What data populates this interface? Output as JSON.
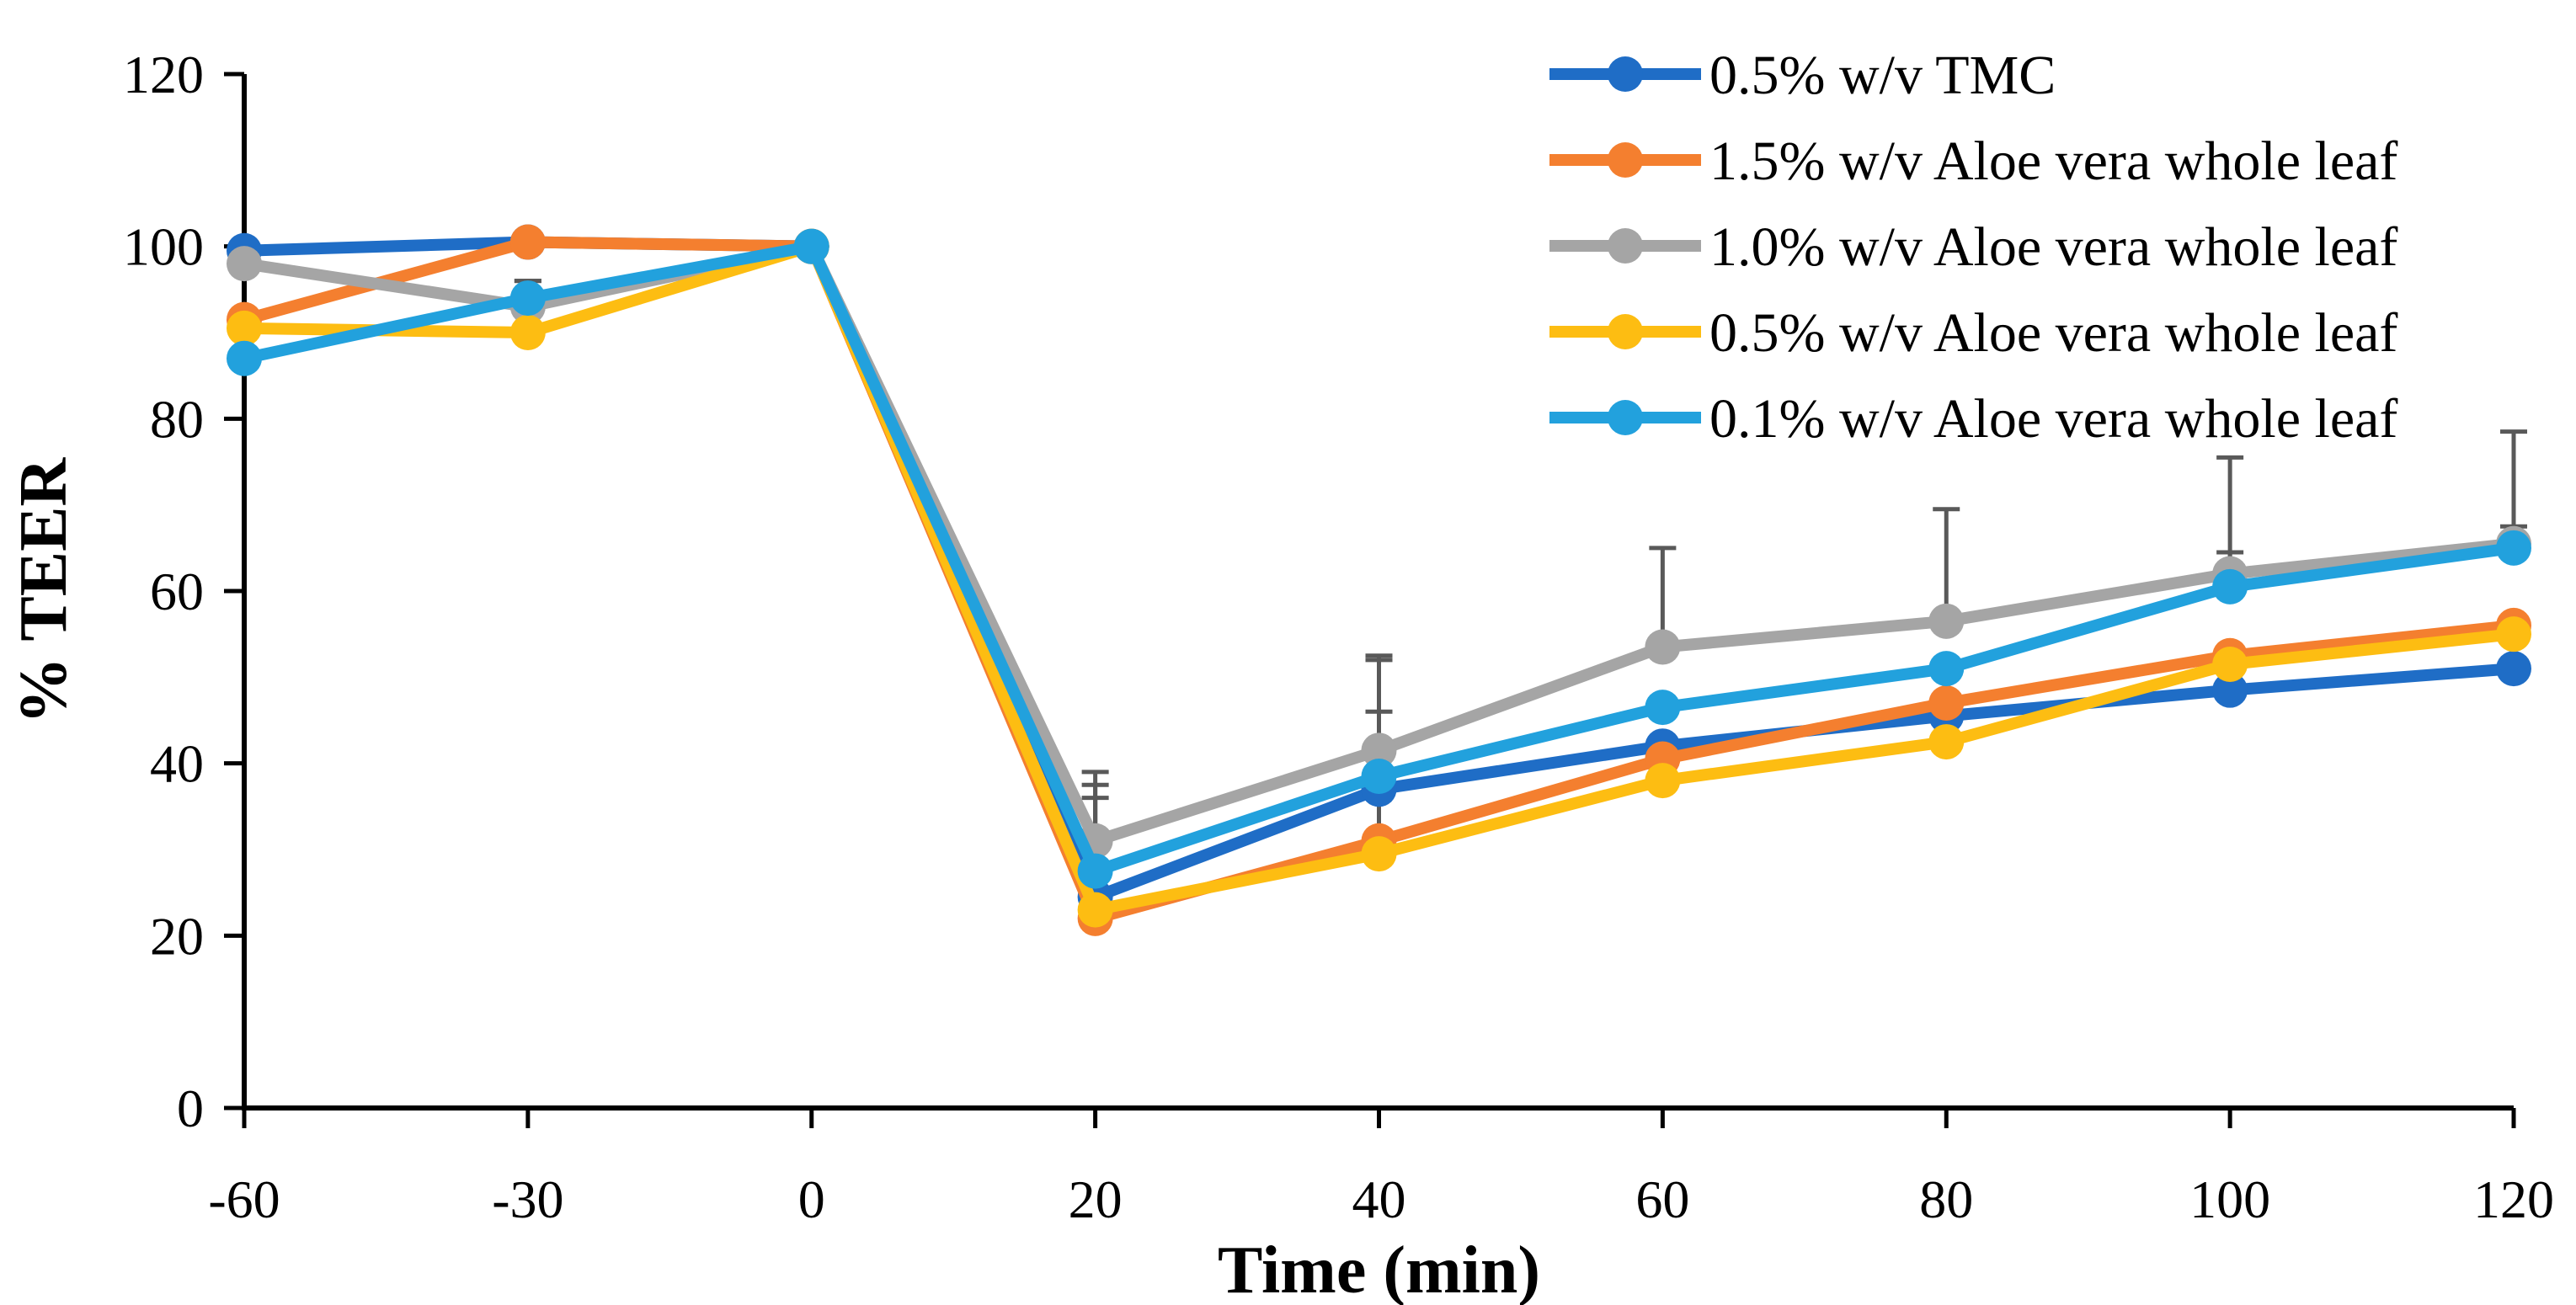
{
  "chart_data": {
    "type": "line",
    "title": "",
    "xlabel": "Time (min)",
    "ylabel": "% TEER",
    "categories": [
      "-60",
      "-30",
      "0",
      "20",
      "40",
      "60",
      "80",
      "100",
      "120"
    ],
    "ylim": [
      0,
      120
    ],
    "yticks": [
      0,
      20,
      40,
      60,
      80,
      100,
      120
    ],
    "legend_position": "top-right",
    "grid": false,
    "series": [
      {
        "name": "0.5% w/v TMC",
        "color": "#1F6DC6",
        "values": [
          99.5,
          100.5,
          100,
          24.5,
          37,
          42,
          45.5,
          48.5,
          51
        ],
        "errors": [
          0,
          0,
          0,
          0,
          0,
          0,
          0,
          0,
          0
        ]
      },
      {
        "name": "1.5% w/v Aloe vera whole leaf",
        "color": "#F47F2F",
        "values": [
          91.5,
          100.5,
          100,
          22,
          31,
          40.5,
          47,
          52.5,
          56
        ],
        "errors": [
          0,
          0,
          0,
          14,
          15,
          0,
          0,
          0,
          0
        ]
      },
      {
        "name": "1.0% w/v Aloe vera whole leaf",
        "color": "#A5A5A5",
        "values": [
          98,
          93,
          100,
          31,
          41.5,
          53.5,
          56.5,
          62,
          65.5
        ],
        "errors": [
          0,
          3,
          0,
          8,
          11,
          11.5,
          13,
          13.5,
          13
        ]
      },
      {
        "name": "0.5% w/v Aloe vera whole leaf",
        "color": "#FDBD12",
        "values": [
          90.5,
          90,
          100,
          23,
          29.5,
          38,
          42.5,
          51.5,
          55
        ],
        "errors": [
          0,
          0,
          0,
          0,
          0,
          0,
          0,
          0,
          0
        ]
      },
      {
        "name": "0.1% w/v Aloe vera whole leaf",
        "color": "#22A1DD",
        "values": [
          87,
          94,
          100,
          27.5,
          38.5,
          46.5,
          51,
          60.5,
          65
        ],
        "errors": [
          0,
          2,
          0,
          10,
          13.5,
          0,
          0,
          4,
          2.5
        ]
      }
    ]
  }
}
